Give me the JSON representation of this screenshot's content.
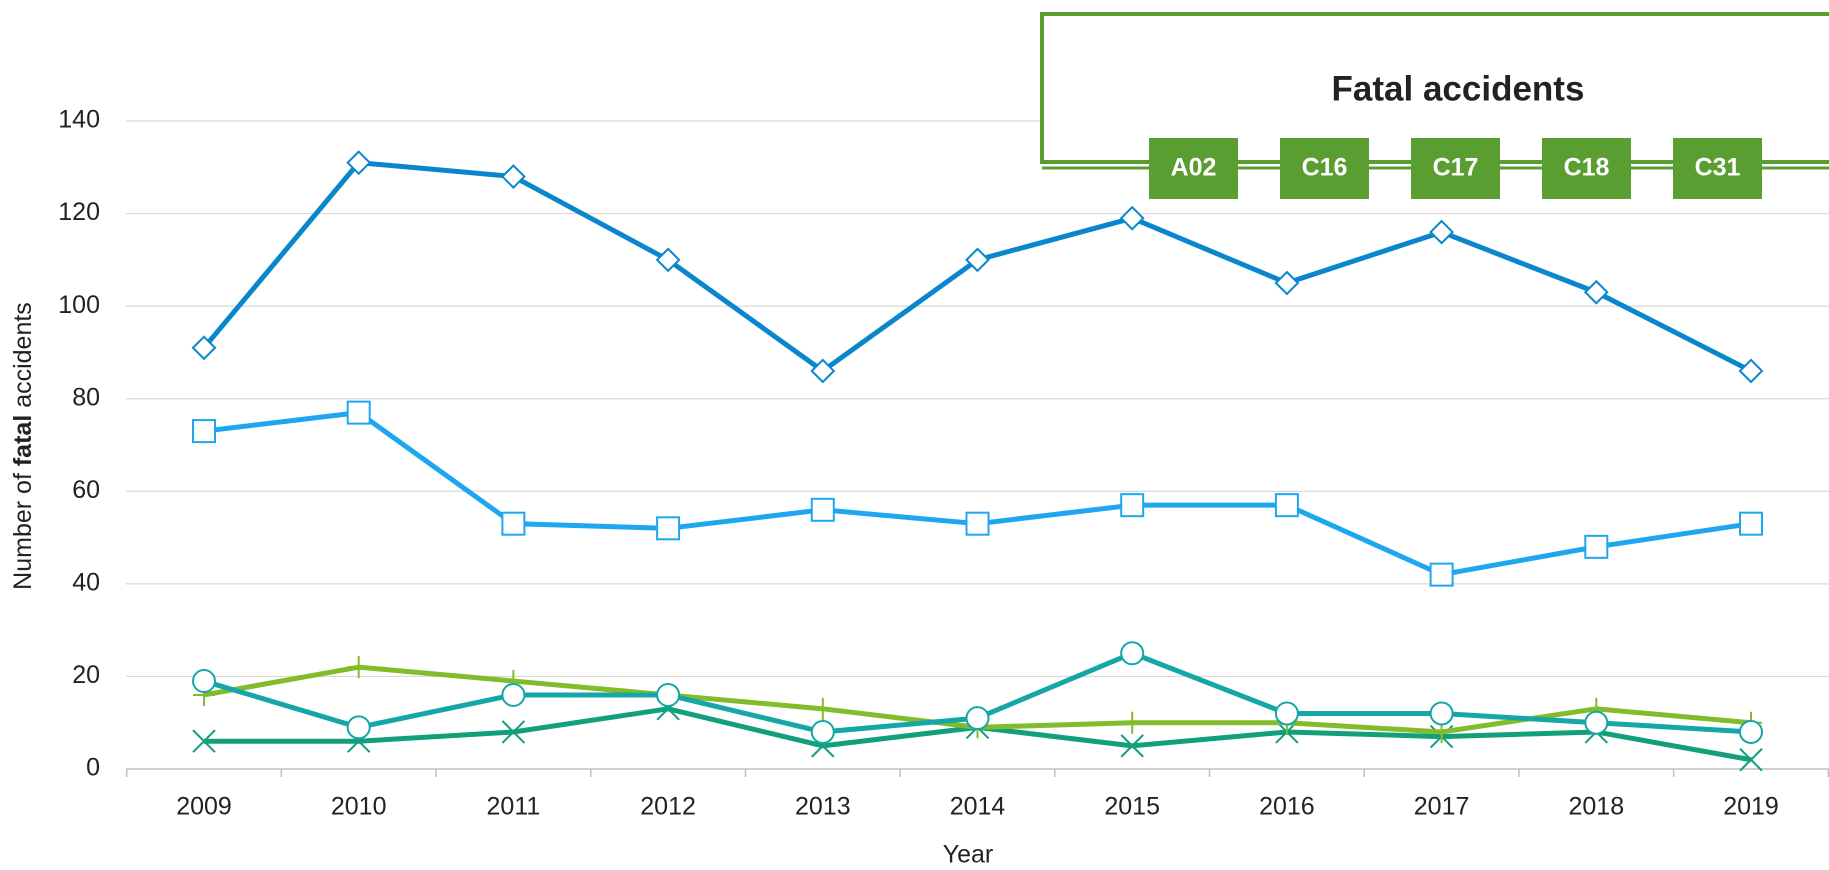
{
  "chart_data": {
    "type": "line",
    "legend_title": "Fatal accidents",
    "x_label": "Year",
    "y_label_parts": [
      "Number of ",
      "fatal",
      " accidents"
    ],
    "categories": [
      "2009",
      "2010",
      "2011",
      "2012",
      "2013",
      "2014",
      "2015",
      "2016",
      "2017",
      "2018",
      "2019"
    ],
    "series": [
      {
        "name": "A02",
        "color": "#0a87cc",
        "marker": "diamond",
        "values": [
          91,
          131,
          128,
          110,
          86,
          110,
          119,
          105,
          116,
          103,
          86
        ]
      },
      {
        "name": "C16",
        "color": "#1ea7f0",
        "marker": "square",
        "values": [
          73,
          77,
          53,
          52,
          56,
          53,
          57,
          57,
          42,
          48,
          53
        ]
      },
      {
        "name": "C17",
        "color": "#15a6a8",
        "marker": "circle",
        "values": [
          19,
          9,
          16,
          16,
          8,
          11,
          25,
          12,
          12,
          10,
          8
        ]
      },
      {
        "name": "C18",
        "color": "#82bc2b",
        "marker": "plus",
        "values": [
          16,
          22,
          19,
          16,
          13,
          9,
          10,
          10,
          8,
          13,
          10
        ]
      },
      {
        "name": "C31",
        "color": "#11a07a",
        "marker": "x",
        "values": [
          6,
          6,
          8,
          13,
          5,
          9,
          5,
          8,
          7,
          8,
          2
        ]
      }
    ],
    "ylim": [
      0,
      140
    ],
    "yticks": [
      0,
      20,
      40,
      60,
      80,
      100,
      120,
      140
    ],
    "grid": true,
    "legend_color": "#5a9e32"
  }
}
